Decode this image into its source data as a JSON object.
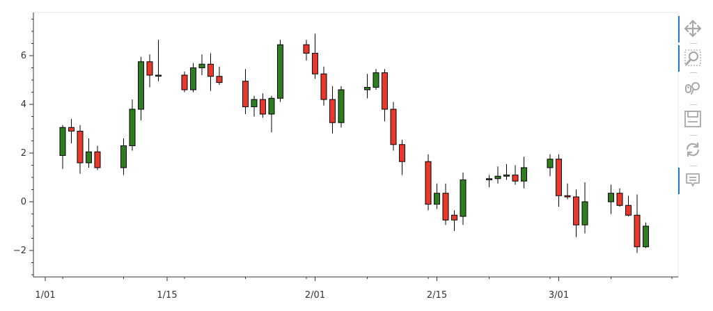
{
  "chart_data": {
    "type": "candlestick",
    "x_ticks": [
      "1/01",
      "1/15",
      "2/01",
      "2/15",
      "3/01"
    ],
    "y_ticks": [
      "−2",
      "0",
      "2",
      "4",
      "6"
    ],
    "ylim": [
      -3.1,
      7.8
    ],
    "candles": [
      {
        "date": "01-03",
        "open": 1.9,
        "high": 3.15,
        "low": 1.35,
        "close": 3.05
      },
      {
        "date": "01-04",
        "open": 3.05,
        "high": 3.4,
        "low": 2.4,
        "close": 2.9
      },
      {
        "date": "01-05",
        "open": 2.9,
        "high": 3.15,
        "low": 1.15,
        "close": 1.6
      },
      {
        "date": "01-06",
        "open": 1.6,
        "high": 2.6,
        "low": 1.4,
        "close": 2.05
      },
      {
        "date": "01-07",
        "open": 2.05,
        "high": 2.3,
        "low": 1.3,
        "close": 1.4
      },
      {
        "date": "01-10",
        "open": 1.4,
        "high": 2.6,
        "low": 1.1,
        "close": 2.3
      },
      {
        "date": "01-11",
        "open": 2.3,
        "high": 4.2,
        "low": 2.1,
        "close": 3.8
      },
      {
        "date": "01-12",
        "open": 3.8,
        "high": 5.95,
        "low": 3.35,
        "close": 5.75
      },
      {
        "date": "01-13",
        "open": 5.75,
        "high": 6.05,
        "low": 4.7,
        "close": 5.2
      },
      {
        "date": "01-14",
        "open": 5.2,
        "high": 6.65,
        "low": 4.95,
        "close": 5.2
      },
      {
        "date": "01-17",
        "open": 5.2,
        "high": 5.35,
        "low": 4.5,
        "close": 4.6
      },
      {
        "date": "01-18",
        "open": 4.6,
        "high": 5.7,
        "low": 4.5,
        "close": 5.5
      },
      {
        "date": "01-19",
        "open": 5.5,
        "high": 6.05,
        "low": 5.2,
        "close": 5.65
      },
      {
        "date": "01-20",
        "open": 5.65,
        "high": 6.1,
        "low": 4.55,
        "close": 5.15
      },
      {
        "date": "01-21",
        "open": 5.15,
        "high": 5.55,
        "low": 4.8,
        "close": 4.9
      },
      {
        "date": "01-24",
        "open": 4.95,
        "high": 5.45,
        "low": 3.6,
        "close": 3.9
      },
      {
        "date": "01-25",
        "open": 3.9,
        "high": 4.35,
        "low": 3.5,
        "close": 4.2
      },
      {
        "date": "01-26",
        "open": 4.2,
        "high": 4.45,
        "low": 3.45,
        "close": 3.6
      },
      {
        "date": "01-27",
        "open": 3.6,
        "high": 4.35,
        "low": 2.85,
        "close": 4.25
      },
      {
        "date": "01-28",
        "open": 4.25,
        "high": 6.65,
        "low": 4.1,
        "close": 6.45
      },
      {
        "date": "01-31",
        "open": 6.45,
        "high": 6.65,
        "low": 5.8,
        "close": 6.1
      },
      {
        "date": "02-01",
        "open": 6.1,
        "high": 6.9,
        "low": 5.05,
        "close": 5.25
      },
      {
        "date": "02-02",
        "open": 5.25,
        "high": 5.55,
        "low": 3.95,
        "close": 4.2
      },
      {
        "date": "02-03",
        "open": 4.2,
        "high": 4.75,
        "low": 2.8,
        "close": 3.25
      },
      {
        "date": "02-04",
        "open": 3.25,
        "high": 4.75,
        "low": 3.05,
        "close": 4.6
      },
      {
        "date": "02-07",
        "open": 4.6,
        "high": 5.25,
        "low": 4.25,
        "close": 4.7
      },
      {
        "date": "02-08",
        "open": 4.7,
        "high": 5.45,
        "low": 4.6,
        "close": 5.3
      },
      {
        "date": "02-09",
        "open": 5.3,
        "high": 5.45,
        "low": 3.3,
        "close": 3.8
      },
      {
        "date": "02-10",
        "open": 3.8,
        "high": 4.1,
        "low": 2.1,
        "close": 2.35
      },
      {
        "date": "02-11",
        "open": 2.35,
        "high": 2.55,
        "low": 1.1,
        "close": 1.65
      },
      {
        "date": "02-14",
        "open": 1.65,
        "high": 1.95,
        "low": -0.35,
        "close": -0.1
      },
      {
        "date": "02-15",
        "open": -0.1,
        "high": 0.75,
        "low": -0.3,
        "close": 0.35
      },
      {
        "date": "02-16",
        "open": 0.35,
        "high": 0.75,
        "low": -0.95,
        "close": -0.75
      },
      {
        "date": "02-17",
        "open": -0.55,
        "high": -0.35,
        "low": -1.2,
        "close": -0.75
      },
      {
        "date": "02-18",
        "open": -0.6,
        "high": 1.2,
        "low": -0.95,
        "close": 0.9
      },
      {
        "date": "02-21",
        "open": 0.9,
        "high": 1.1,
        "low": 0.6,
        "close": 0.95
      },
      {
        "date": "02-22",
        "open": 0.95,
        "high": 1.45,
        "low": 0.75,
        "close": 1.05
      },
      {
        "date": "02-23",
        "open": 1.05,
        "high": 1.55,
        "low": 0.9,
        "close": 1.1
      },
      {
        "date": "02-24",
        "open": 1.1,
        "high": 1.5,
        "low": 0.7,
        "close": 0.85
      },
      {
        "date": "02-25",
        "open": 0.85,
        "high": 1.85,
        "low": 0.55,
        "close": 1.4
      },
      {
        "date": "02-28",
        "open": 1.4,
        "high": 1.95,
        "low": 1.05,
        "close": 1.75
      },
      {
        "date": "03-01",
        "open": 1.75,
        "high": 1.95,
        "low": -0.2,
        "close": 0.25
      },
      {
        "date": "03-02",
        "open": 0.25,
        "high": 0.75,
        "low": 0.1,
        "close": 0.2
      },
      {
        "date": "03-03",
        "open": 0.2,
        "high": 0.5,
        "low": -1.45,
        "close": -0.95
      },
      {
        "date": "03-04",
        "open": -0.95,
        "high": 0.8,
        "low": -1.3,
        "close": 0.0
      },
      {
        "date": "03-07",
        "open": 0.0,
        "high": 0.7,
        "low": -0.5,
        "close": 0.35
      },
      {
        "date": "03-08",
        "open": 0.35,
        "high": 0.55,
        "low": -0.2,
        "close": -0.15
      },
      {
        "date": "03-09",
        "open": -0.15,
        "high": 0.25,
        "low": -0.6,
        "close": -0.55
      },
      {
        "date": "03-10",
        "open": -0.55,
        "high": 0.3,
        "low": -2.1,
        "close": -1.85
      },
      {
        "date": "03-11",
        "open": -1.85,
        "high": -0.85,
        "low": -1.9,
        "close": -1.0
      }
    ]
  },
  "colors": {
    "up": "#2e7d1f",
    "down": "#e8382c",
    "outline": "#000000",
    "axis": "#333333",
    "frame": "#e5e5e5",
    "active": "#1f78d1",
    "icon": "#a8a8a8"
  },
  "toolbar": [
    {
      "name": "pan-tool",
      "icon": "move-arrows-icon",
      "active": true
    },
    {
      "name": "box-zoom-tool",
      "icon": "box-zoom-magnifier-icon",
      "active": true
    },
    {
      "name": "wheel-zoom-tool",
      "icon": "wheel-zoom-icon",
      "active": false
    },
    {
      "name": "save-tool",
      "icon": "save-floppy-icon",
      "active": false
    },
    {
      "name": "reset-tool",
      "icon": "reset-arrows-icon",
      "active": false
    },
    {
      "name": "hover-tool",
      "icon": "hover-tooltip-icon",
      "active": true
    }
  ]
}
